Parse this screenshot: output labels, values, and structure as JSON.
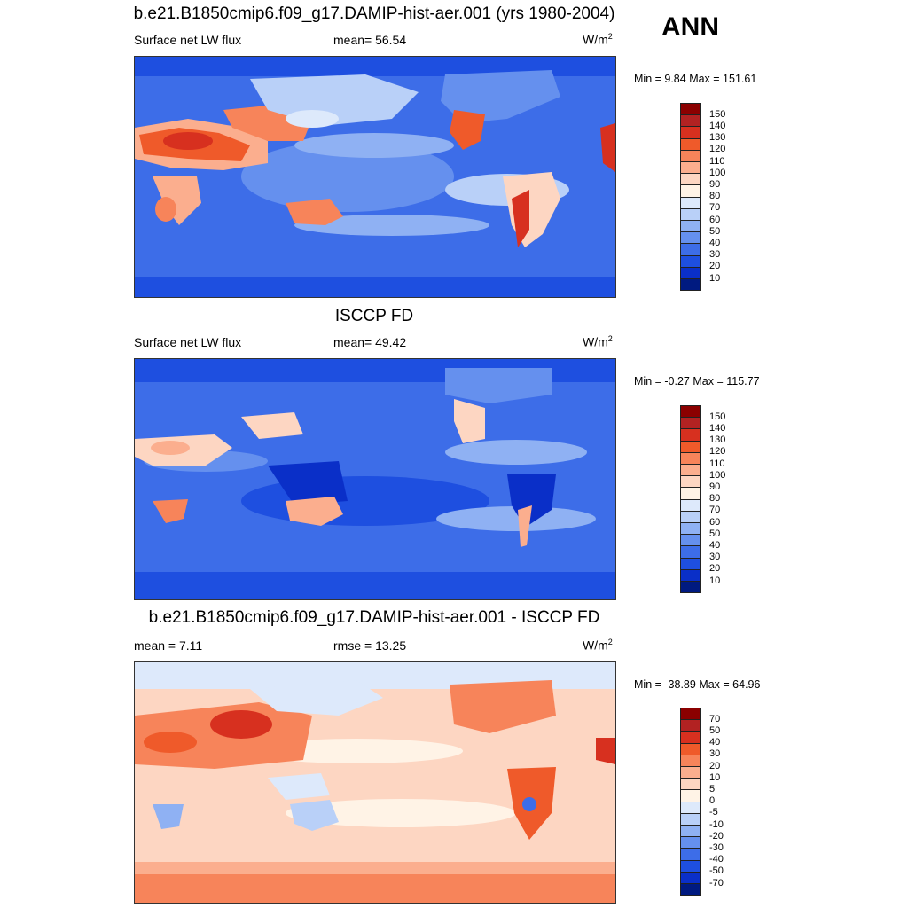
{
  "season": "ANN",
  "panels": [
    {
      "title": "b.e21.B1850cmip6.f09_g17.DAMIP-hist-aer.001 (yrs 1980-2004)",
      "left_label": "Surface net LW flux",
      "center_label": "mean=  56.54",
      "unit_base": "W/m",
      "unit_exp": "2",
      "minmax": "Min =   9.84 Max = 151.61",
      "colorbar": {
        "labels": [
          "150",
          "140",
          "130",
          "120",
          "110",
          "100",
          "90",
          "80",
          "70",
          "60",
          "50",
          "40",
          "30",
          "20",
          "10"
        ],
        "colors": [
          "#8b0000",
          "#b22222",
          "#d7301f",
          "#ef5a2a",
          "#f7845a",
          "#fbae8e",
          "#fdd6c2",
          "#fff3e6",
          "#dde9fb",
          "#b9d0f8",
          "#8fb1f3",
          "#6590ee",
          "#3d6de8",
          "#1e4fe0",
          "#0a2fc8",
          "#001a80"
        ]
      }
    },
    {
      "title": "ISCCP FD",
      "left_label": "Surface net LW flux",
      "center_label": "mean=  49.42",
      "unit_base": "W/m",
      "unit_exp": "2",
      "minmax": "Min =  -0.27 Max = 115.77",
      "colorbar": {
        "labels": [
          "150",
          "140",
          "130",
          "120",
          "110",
          "100",
          "90",
          "80",
          "70",
          "60",
          "50",
          "40",
          "30",
          "20",
          "10"
        ],
        "colors": [
          "#8b0000",
          "#b22222",
          "#d7301f",
          "#ef5a2a",
          "#f7845a",
          "#fbae8e",
          "#fdd6c2",
          "#fff3e6",
          "#dde9fb",
          "#b9d0f8",
          "#8fb1f3",
          "#6590ee",
          "#3d6de8",
          "#1e4fe0",
          "#0a2fc8",
          "#001a80"
        ]
      }
    },
    {
      "title": "b.e21.B1850cmip6.f09_g17.DAMIP-hist-aer.001 - ISCCP FD",
      "left_label": "mean =   7.11",
      "center_label": "rmse =  13.25",
      "unit_base": "W/m",
      "unit_exp": "2",
      "minmax": "Min = -38.89 Max =  64.96",
      "colorbar": {
        "labels": [
          "70",
          "50",
          "40",
          "30",
          "20",
          "10",
          "5",
          "0",
          "-5",
          "-10",
          "-20",
          "-30",
          "-40",
          "-50",
          "-70"
        ],
        "colors": [
          "#8b0000",
          "#b22222",
          "#d7301f",
          "#ef5a2a",
          "#f7845a",
          "#fbae8e",
          "#fdd6c2",
          "#fff3e6",
          "#dde9fb",
          "#b9d0f8",
          "#8fb1f3",
          "#6590ee",
          "#3d6de8",
          "#1e4fe0",
          "#0a2fc8",
          "#001a80"
        ]
      }
    }
  ]
}
